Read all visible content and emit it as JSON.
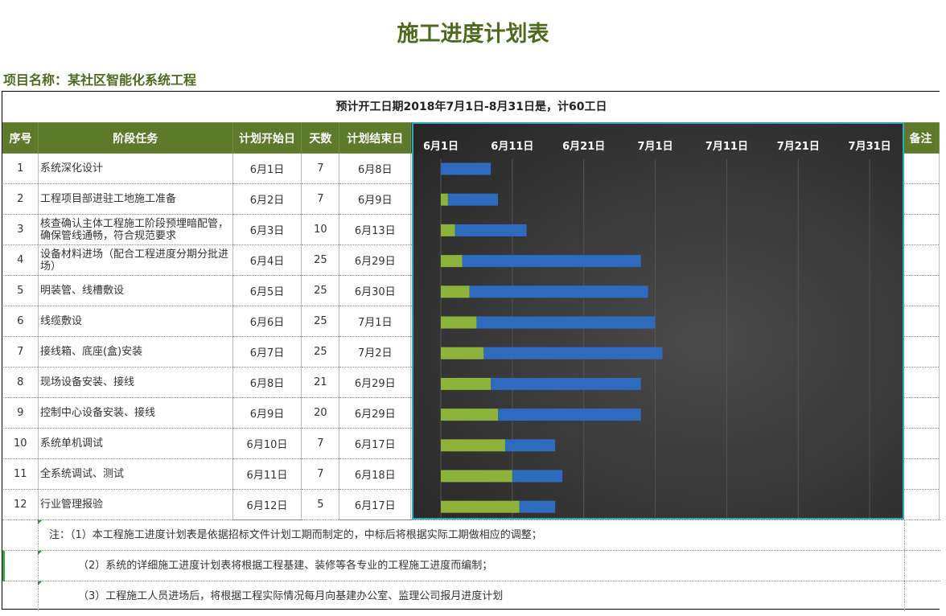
{
  "title": "施工进度计划表",
  "project": "项目名称：某社区智能化系统工程",
  "subtitle": "预计开工日期2018年7月1日-8月31日是，计60工日",
  "headers": {
    "index": "序号",
    "task": "阶段任务",
    "start": "计划开始日",
    "days": "天数",
    "end": "计划结束日",
    "remark": "备注"
  },
  "rows": [
    {
      "index": "1",
      "task": "系统深化设计",
      "start": "6月1日",
      "days": "7",
      "end": "6月8日"
    },
    {
      "index": "2",
      "task": "工程项目部进驻工地施工准备",
      "start": "6月2日",
      "days": "7",
      "end": "6月9日"
    },
    {
      "index": "3",
      "task": "核查确认主体工程施工阶段预埋暗配管，确保管线通畅，符合规范要求",
      "start": "6月3日",
      "days": "10",
      "end": "6月13日"
    },
    {
      "index": "4",
      "task": "设备材料进场（配合工程进度分期分批进场）",
      "start": "6月4日",
      "days": "25",
      "end": "6月29日"
    },
    {
      "index": "5",
      "task": "明装管、线槽敷设",
      "start": "6月5日",
      "days": "25",
      "end": "6月30日"
    },
    {
      "index": "6",
      "task": "线缆敷设",
      "start": "6月6日",
      "days": "25",
      "end": "7月1日"
    },
    {
      "index": "7",
      "task": "接线箱、底座(盒)安装",
      "start": "6月7日",
      "days": "25",
      "end": "7月2日"
    },
    {
      "index": "8",
      "task": "现场设备安装、接线",
      "start": "6月8日",
      "days": "21",
      "end": "6月29日"
    },
    {
      "index": "9",
      "task": "控制中心设备安装、接线",
      "start": "6月9日",
      "days": "20",
      "end": "6月29日"
    },
    {
      "index": "10",
      "task": "系统单机调试",
      "start": "6月10日",
      "days": "7",
      "end": "6月17日"
    },
    {
      "index": "11",
      "task": "全系统调试、测试",
      "start": "6月11日",
      "days": "7",
      "end": "6月18日"
    },
    {
      "index": "12",
      "task": "行业管理报验",
      "start": "6月12日",
      "days": "5",
      "end": "6月17日"
    }
  ],
  "notes": [
    "注：（1）本工程施工进度计划表是依据招标文件计划工期而制定的，中标后将根据实际工期做相应的调整；",
    "（2）系统的详细施工进度计划表将根据工程基建、装修等各专业的工程施工进度而编制；",
    "（3）工程施工人员进场后，将根据工程实际情况每月向基建办公室、监理公司报月进度计划"
  ],
  "chart_data": {
    "type": "bar",
    "orientation": "horizontal-stacked",
    "x_tick_labels": [
      "6月1日",
      "6月11日",
      "6月21日",
      "7月1日",
      "7月11日",
      "7月21日",
      "7月31日"
    ],
    "x_range": [
      "6月1日",
      "8月1日"
    ],
    "categories": [
      "1",
      "2",
      "3",
      "4",
      "5",
      "6",
      "7",
      "8",
      "9",
      "10",
      "11",
      "12"
    ],
    "series": [
      {
        "values": [
          "6月1日",
          "6月2日",
          "6月3日",
          "6月4日",
          "6月5日",
          "6月6日",
          "6月7日",
          "6月8日",
          "6月9日",
          "6月10日",
          "6月11日",
          "6月12日"
        ],
        "color": "#8db33a"
      },
      {
        "values": [
          7,
          7,
          10,
          25,
          25,
          25,
          25,
          21,
          20,
          7,
          7,
          5
        ],
        "color": "#2e6bbf"
      }
    ],
    "grid": true
  }
}
